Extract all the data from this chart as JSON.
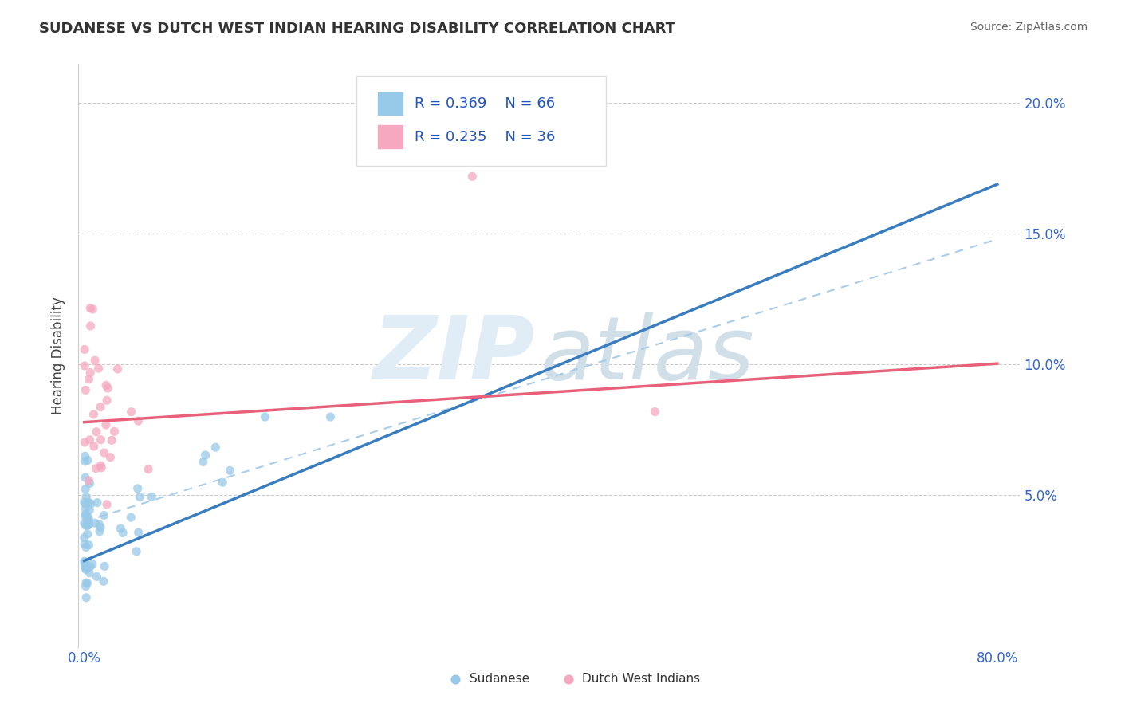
{
  "title": "SUDANESE VS DUTCH WEST INDIAN HEARING DISABILITY CORRELATION CHART",
  "source": "Source: ZipAtlas.com",
  "ylabel": "Hearing Disability",
  "legend_r1": "R = 0.369",
  "legend_n1": "N = 66",
  "legend_r2": "R = 0.235",
  "legend_n2": "N = 36",
  "legend_label1": "Sudanese",
  "legend_label2": "Dutch West Indians",
  "blue_color": "#97C9E8",
  "pink_color": "#F5A8BF",
  "blue_line_color": "#3A7DBF",
  "pink_line_color": "#E8607A",
  "blue_dash_color": "#A0C8E8",
  "background_color": "#FFFFFF",
  "xlim": [
    0.0,
    0.8
  ],
  "ylim": [
    0.0,
    0.2
  ],
  "yticks": [
    0.0,
    0.05,
    0.1,
    0.15,
    0.2
  ],
  "ytick_labels_right": [
    "",
    "5.0%",
    "10.0%",
    "15.0%",
    "20.0%"
  ],
  "xtick_labels": [
    "0.0%",
    "",
    "",
    "",
    "",
    "",
    "",
    "",
    "80.0%"
  ]
}
